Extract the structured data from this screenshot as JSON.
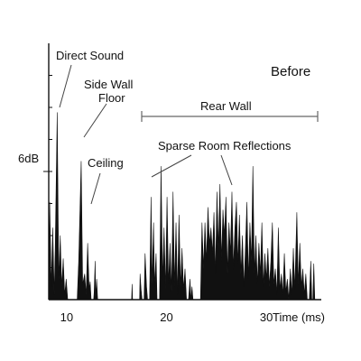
{
  "chart_data": {
    "type": "area",
    "title": "",
    "panel_label": "Before",
    "xlabel": "Time (ms)",
    "ylabel": "",
    "xlim": [
      8.2,
      35.5
    ],
    "ylim": [
      0,
      1
    ],
    "y_marker_label": "6dB",
    "y_marker_value": 0.5,
    "x_ticks": [
      10,
      20,
      30
    ],
    "grid": false,
    "color": "#111111",
    "series": [
      {
        "values": [
          [
            8.2,
            0
          ],
          [
            8.3,
            0.38
          ],
          [
            8.45,
            0.05
          ],
          [
            8.6,
            0.28
          ],
          [
            8.75,
            0.02
          ],
          [
            8.85,
            0.2
          ],
          [
            9.05,
            0.73
          ],
          [
            9.2,
            0.08
          ],
          [
            9.35,
            0.25
          ],
          [
            9.5,
            0.05
          ],
          [
            9.65,
            0.16
          ],
          [
            9.8,
            0.02
          ],
          [
            9.95,
            0.08
          ],
          [
            10.1,
            0
          ],
          [
            11.05,
            0
          ],
          [
            11.2,
            0.15
          ],
          [
            11.45,
            0.54
          ],
          [
            11.6,
            0.06
          ],
          [
            11.8,
            0.1
          ],
          [
            11.95,
            0.02
          ],
          [
            12.1,
            0.22
          ],
          [
            12.25,
            0.04
          ],
          [
            12.35,
            0.07
          ],
          [
            12.45,
            0
          ],
          [
            12.7,
            0
          ],
          [
            12.75,
            0.03
          ],
          [
            12.85,
            0.15
          ],
          [
            12.9,
            0.01
          ],
          [
            13,
            0.08
          ],
          [
            13.1,
            0
          ],
          [
            16.5,
            0
          ],
          [
            16.55,
            0.06
          ],
          [
            16.6,
            0
          ],
          [
            17.3,
            0
          ],
          [
            17.35,
            0.1
          ],
          [
            17.45,
            0.04
          ],
          [
            17.55,
            0
          ],
          [
            17.75,
            0
          ],
          [
            17.85,
            0.18
          ],
          [
            18,
            0.05
          ],
          [
            18.1,
            0
          ],
          [
            18.3,
            0
          ],
          [
            18.45,
            0.4
          ],
          [
            18.55,
            0.06
          ],
          [
            18.7,
            0.3
          ],
          [
            18.8,
            0.05
          ],
          [
            18.95,
            0.18
          ],
          [
            19.05,
            0
          ],
          [
            19.3,
            0
          ],
          [
            19.45,
            0.52
          ],
          [
            19.6,
            0.08
          ],
          [
            19.75,
            0.28
          ],
          [
            19.9,
            0.04
          ],
          [
            20.05,
            0.4
          ],
          [
            20.2,
            0.06
          ],
          [
            20.35,
            0.22
          ],
          [
            20.5,
            0.03
          ],
          [
            20.65,
            0.42
          ],
          [
            20.8,
            0.05
          ],
          [
            20.95,
            0.3
          ],
          [
            21.1,
            0.02
          ],
          [
            21.25,
            0.33
          ],
          [
            21.4,
            0.05
          ],
          [
            21.55,
            0.2
          ],
          [
            21.7,
            0.04
          ],
          [
            21.85,
            0.12
          ],
          [
            22,
            0
          ],
          [
            22.2,
            0
          ],
          [
            22.35,
            0.08
          ],
          [
            22.45,
            0
          ],
          [
            22.55,
            0.05
          ],
          [
            22.65,
            0
          ],
          [
            23.4,
            0
          ],
          [
            23.55,
            0.3
          ],
          [
            23.7,
            0.12
          ],
          [
            23.85,
            0.3
          ],
          [
            24,
            0.15
          ],
          [
            24.15,
            0.36
          ],
          [
            24.3,
            0.22
          ],
          [
            24.45,
            0.28
          ],
          [
            24.6,
            0.18
          ],
          [
            24.75,
            0.34
          ],
          [
            24.9,
            0.1
          ],
          [
            25.05,
            0.42
          ],
          [
            25.2,
            0.2
          ],
          [
            25.35,
            0.45
          ],
          [
            25.5,
            0.15
          ],
          [
            25.65,
            0.35
          ],
          [
            25.8,
            0.25
          ],
          [
            25.95,
            0.4
          ],
          [
            26.1,
            0.1
          ],
          [
            26.25,
            0.3
          ],
          [
            26.4,
            0.18
          ],
          [
            26.55,
            0.42
          ],
          [
            26.7,
            0.12
          ],
          [
            26.85,
            0.28
          ],
          [
            27,
            0.38
          ],
          [
            27.15,
            0.14
          ],
          [
            27.3,
            0.33
          ],
          [
            27.45,
            0.1
          ],
          [
            27.6,
            0.25
          ],
          [
            27.75,
            0.05
          ],
          [
            27.9,
            0.2
          ],
          [
            28.05,
            0.38
          ],
          [
            28.2,
            0.08
          ],
          [
            28.35,
            0.3
          ],
          [
            28.5,
            0.15
          ],
          [
            28.65,
            0.52
          ],
          [
            28.8,
            0.1
          ],
          [
            28.95,
            0.25
          ],
          [
            29.1,
            0.06
          ],
          [
            29.25,
            0.22
          ],
          [
            29.4,
            0.1
          ],
          [
            29.55,
            0.3
          ],
          [
            29.7,
            0.05
          ],
          [
            29.85,
            0.18
          ],
          [
            30,
            0.08
          ],
          [
            30.15,
            0.2
          ],
          [
            30.3,
            0.05
          ],
          [
            30.45,
            0.15
          ],
          [
            30.6,
            0.3
          ],
          [
            30.75,
            0.06
          ],
          [
            30.9,
            0.12
          ],
          [
            31.05,
            0.02
          ],
          [
            31.2,
            0.28
          ],
          [
            31.35,
            0.04
          ],
          [
            31.5,
            0.1
          ],
          [
            31.65,
            0.02
          ],
          [
            31.8,
            0.18
          ],
          [
            31.95,
            0.03
          ],
          [
            32.1,
            0.08
          ],
          [
            32.25,
            0
          ],
          [
            32.4,
            0.12
          ],
          [
            32.55,
            0.02
          ],
          [
            32.7,
            0.2
          ],
          [
            32.85,
            0.04
          ],
          [
            33.05,
            0.34
          ],
          [
            33.2,
            0.06
          ],
          [
            33.35,
            0.22
          ],
          [
            33.5,
            0.05
          ],
          [
            33.65,
            0.12
          ],
          [
            33.8,
            0.02
          ],
          [
            33.95,
            0.1
          ],
          [
            34.1,
            0
          ],
          [
            34.3,
            0
          ],
          [
            34.45,
            0.15
          ],
          [
            34.55,
            0
          ],
          [
            34.65,
            0
          ],
          [
            34.75,
            0.14
          ],
          [
            34.85,
            0
          ],
          [
            35.4,
            0
          ]
        ]
      }
    ],
    "annotations": [
      {
        "text": "Direct Sound",
        "x": 9.05,
        "y": 0.73
      },
      {
        "text": "Side Wall",
        "x": 11.45,
        "y": 0.54
      },
      {
        "text": "Floor",
        "x": 11.45,
        "y": 0.54
      },
      {
        "text": "Ceiling",
        "x": 12.1,
        "y": 0.22
      },
      {
        "text": "Sparse Room Reflections",
        "x": 19.45,
        "y": 0.52
      },
      {
        "text": "Rear Wall",
        "x_range": [
          18.0,
          35.0
        ]
      }
    ]
  }
}
